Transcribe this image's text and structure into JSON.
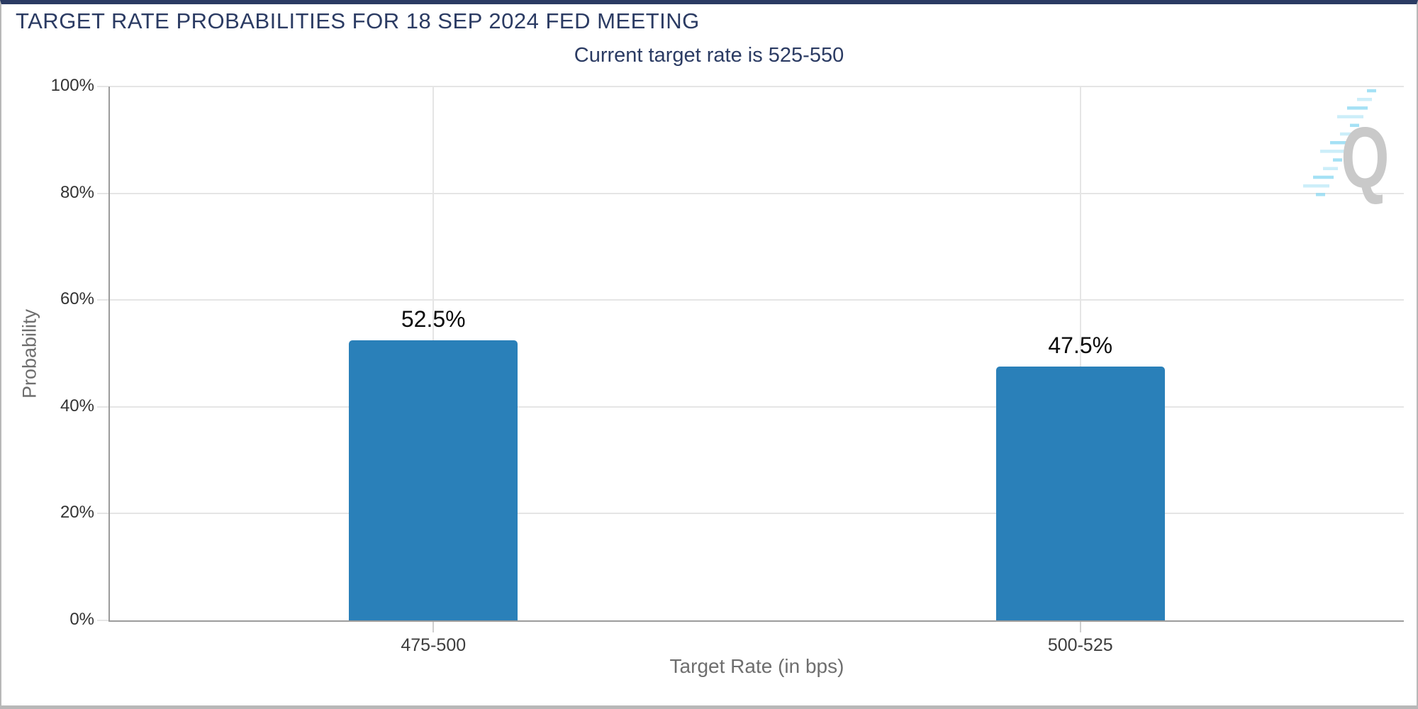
{
  "header": {
    "title": "TARGET RATE PROBABILITIES FOR 18 SEP 2024 FED MEETING",
    "subtitle": "Current target rate is 525-550"
  },
  "colors": {
    "accent_navy": "#2b3b63",
    "bar_blue": "#2a80b9",
    "axis_gray": "#9c9c9c",
    "grid_gray": "#e5e5e5",
    "muted_label_gray": "#6e6e6e",
    "watermark_gray": "#c9c9c9",
    "watermark_cyan": "#8ed9f2"
  },
  "watermark": {
    "letter": "Q"
  },
  "chart_data": {
    "type": "bar",
    "title": "TARGET RATE PROBABILITIES FOR 18 SEP 2024 FED MEETING",
    "subtitle": "Current target rate is 525-550",
    "categories": [
      "475-500",
      "500-525"
    ],
    "values": [
      52.5,
      47.5
    ],
    "value_labels": [
      "52.5%",
      "47.5%"
    ],
    "xlabel": "Target Rate (in bps)",
    "ylabel": "Probability",
    "ylim": [
      0,
      100
    ],
    "yticks": [
      0,
      20,
      40,
      60,
      80,
      100
    ],
    "ytick_labels": [
      "0%",
      "20%",
      "40%",
      "60%",
      "80%",
      "100%"
    ],
    "grid": true,
    "legend": false,
    "bar_color": "#2a80b9"
  }
}
